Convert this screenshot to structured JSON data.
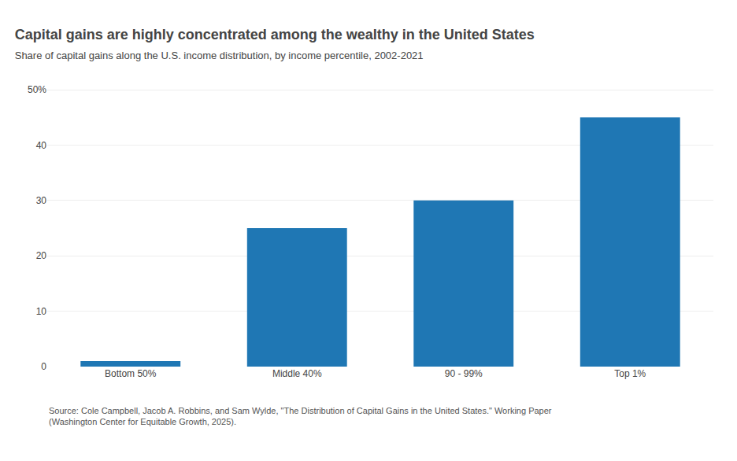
{
  "chart_data": {
    "type": "bar",
    "title": "Capital gains are highly concentrated among the wealthy in the United States",
    "subtitle": "Share of capital gains along the U.S. income distribution, by income percentile, 2002-2021",
    "categories": [
      "Bottom 50%",
      "Middle 40%",
      "90 - 99%",
      "Top 1%"
    ],
    "values": [
      1.0,
      25.0,
      30.0,
      45.0
    ],
    "ylim": [
      0,
      52
    ],
    "yticks": [
      0,
      10,
      20,
      30,
      40,
      {
        "value": 50,
        "label": "50%"
      }
    ],
    "grid": true,
    "annotations": [
      "Source: Cole Campbell, Jacob A. Robbins, and Sam Wylde, \"The Distribution of Capital Gains in the United States.\" Working Paper\n(Washington Center for Equitable Growth, 2025)."
    ]
  }
}
